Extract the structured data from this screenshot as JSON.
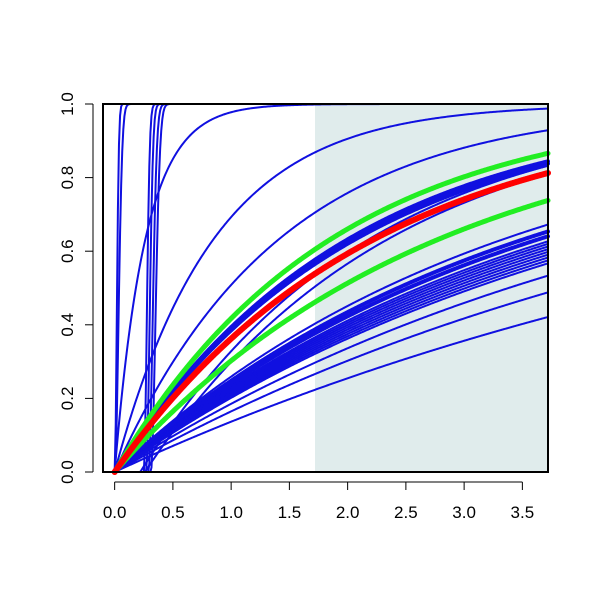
{
  "chart_data": {
    "type": "line",
    "title": "",
    "xlabel": "",
    "ylabel": "",
    "xlim": [
      -0.1,
      3.72
    ],
    "ylim": [
      0.0,
      1.0
    ],
    "x_ticks": [
      0.0,
      0.5,
      1.0,
      1.5,
      2.0,
      2.5,
      3.0,
      3.5
    ],
    "x_tick_labels": [
      "0.0",
      "0.5",
      "1.0",
      "1.5",
      "2.0",
      "2.5",
      "3.0",
      "3.5"
    ],
    "y_ticks": [
      0.0,
      0.2,
      0.4,
      0.6,
      0.8,
      1.0
    ],
    "y_tick_labels": [
      "0.0",
      "0.2",
      "0.4",
      "0.6",
      "0.8",
      "1.0"
    ],
    "grid": false,
    "shaded_region": {
      "x_start": 1.72,
      "x_end": 3.72,
      "color": "#e0ecec"
    },
    "colors": {
      "blue": "#1010e0",
      "red": "#ff0000",
      "green": "#22ee22"
    },
    "series": [
      {
        "color": "blue",
        "shift": 0.0,
        "rate": 40.0,
        "steep": 1
      },
      {
        "color": "blue",
        "shift": 0.0,
        "rate": 22.0,
        "steep": 1
      },
      {
        "color": "blue",
        "shift": 0.0,
        "rate": 3.8,
        "steep": 0
      },
      {
        "color": "blue",
        "shift": 0.0,
        "rate": 1.18,
        "steep": 0
      },
      {
        "color": "blue",
        "shift": 0.0,
        "rate": 0.71,
        "steep": 0
      },
      {
        "color": "blue",
        "shift": 0.25,
        "rate": 28.0,
        "steep": 1
      },
      {
        "color": "blue",
        "shift": 0.27,
        "rate": 24.0,
        "steep": 1
      },
      {
        "color": "blue",
        "shift": 0.29,
        "rate": 20.0,
        "steep": 1
      },
      {
        "color": "blue",
        "shift": 0.31,
        "rate": 18.0,
        "steep": 1
      },
      {
        "color": "blue",
        "shift": 0.22,
        "rate": 0.51,
        "steep": 0
      },
      {
        "color": "blue",
        "shift": 0.26,
        "rate": 0.48,
        "steep": 0
      },
      {
        "color": "blue",
        "shift": 0.0,
        "rate": 0.5,
        "steep": 0,
        "width": 4
      },
      {
        "color": "blue",
        "shift": 0.0,
        "rate": 0.49,
        "steep": 0,
        "width": 4
      },
      {
        "color": "blue",
        "shift": 0.0,
        "rate": 0.48,
        "steep": 0
      },
      {
        "color": "blue",
        "shift": 0.0,
        "rate": 0.3,
        "steep": 0
      },
      {
        "color": "blue",
        "shift": 0.0,
        "rate": 0.285,
        "steep": 0,
        "width": 4
      },
      {
        "color": "blue",
        "shift": 0.0,
        "rate": 0.275,
        "steep": 0,
        "width": 4
      },
      {
        "color": "blue",
        "shift": 0.0,
        "rate": 0.265,
        "steep": 0
      },
      {
        "color": "blue",
        "shift": 0.0,
        "rate": 0.26,
        "steep": 0
      },
      {
        "color": "blue",
        "shift": 0.0,
        "rate": 0.255,
        "steep": 0
      },
      {
        "color": "blue",
        "shift": 0.0,
        "rate": 0.25,
        "steep": 0
      },
      {
        "color": "blue",
        "shift": 0.0,
        "rate": 0.245,
        "steep": 0
      },
      {
        "color": "blue",
        "shift": 0.0,
        "rate": 0.24,
        "steep": 0
      },
      {
        "color": "blue",
        "shift": 0.0,
        "rate": 0.235,
        "steep": 0
      },
      {
        "color": "blue",
        "shift": 0.0,
        "rate": 0.23,
        "steep": 0
      },
      {
        "color": "blue",
        "shift": 0.0,
        "rate": 0.225,
        "steep": 0
      },
      {
        "color": "blue",
        "shift": 0.0,
        "rate": 0.205,
        "steep": 0
      },
      {
        "color": "blue",
        "shift": 0.0,
        "rate": 0.18,
        "steep": 0
      },
      {
        "color": "blue",
        "shift": 0.0,
        "rate": 0.147,
        "steep": 0
      },
      {
        "color": "green",
        "shift": 0.0,
        "rate": 0.54,
        "steep": 0,
        "width": 5
      },
      {
        "color": "green",
        "shift": 0.0,
        "rate": 0.36,
        "steep": 0,
        "width": 5
      },
      {
        "color": "red",
        "shift": 0.0,
        "rate": 0.45,
        "steep": 0,
        "width": 6
      }
    ]
  }
}
